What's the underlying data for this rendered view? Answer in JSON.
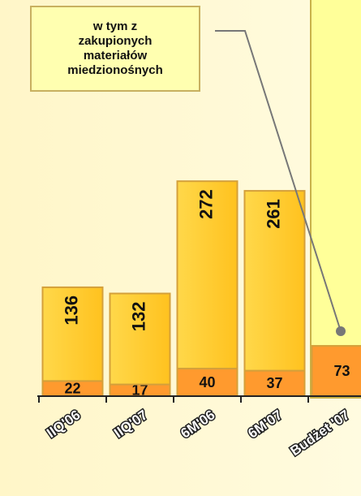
{
  "chart_data": {
    "type": "stacked_bar",
    "categories": [
      "IIQ'06",
      "IIQ'07",
      "6M'06",
      "6M'07",
      "Budżet '07"
    ],
    "series": [
      {
        "color": "#ff9a2e",
        "values": [
          22,
          17,
          40,
          37,
          73
        ]
      },
      {
        "color": "#ffcc33",
        "values": [
          136,
          132,
          272,
          261,
          null
        ]
      }
    ],
    "ylim": [
      0,
      575
    ],
    "annotation": "w tym z zakupionych materiałów miedzionośnych"
  }
}
